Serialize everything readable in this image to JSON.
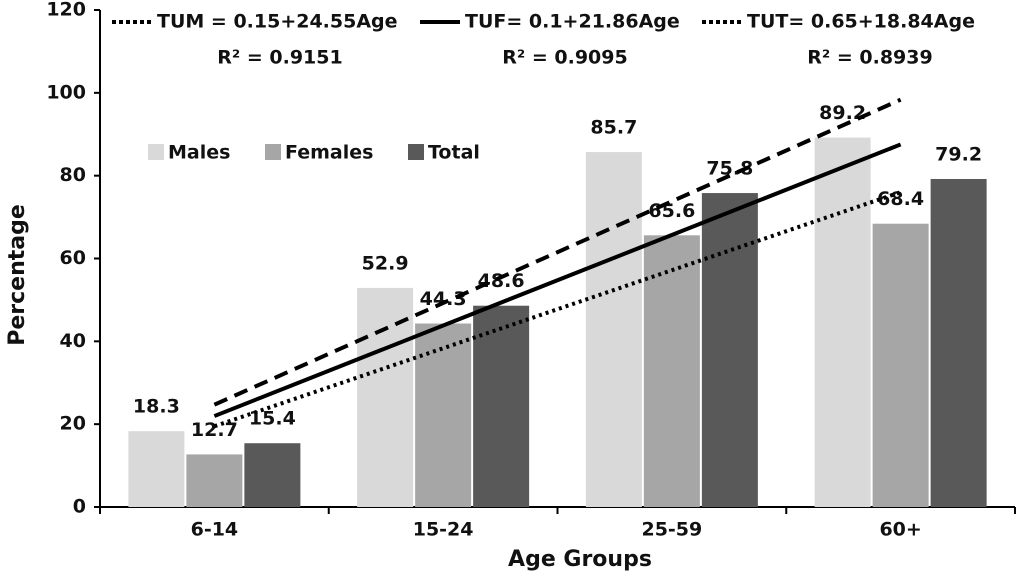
{
  "chart_data": {
    "type": "bar",
    "categories": [
      "6-14",
      "15-24",
      "25-59",
      "60+"
    ],
    "series": [
      {
        "name": "Males",
        "color": "#d9d9d9",
        "values": [
          18.3,
          52.9,
          85.7,
          89.2
        ]
      },
      {
        "name": "Females",
        "color": "#a6a6a6",
        "values": [
          12.7,
          44.3,
          65.6,
          68.4
        ]
      },
      {
        "name": "Total",
        "color": "#595959",
        "values": [
          15.4,
          48.6,
          75.8,
          79.2
        ]
      }
    ],
    "trendlines": [
      {
        "label": "TUM = 0.15+24.55Age",
        "r2": "R² = 0.9151",
        "intercept": 0.15,
        "slope": 24.55,
        "dash": "14,8"
      },
      {
        "label": "TUF= 0.1+21.86Age",
        "r2": "R² = 0.9095",
        "intercept": 0.1,
        "slope": 21.86,
        "dash": "none"
      },
      {
        "label": "TUT= 0.65+18.84Age",
        "r2": "R² = 0.8939",
        "intercept": 0.65,
        "slope": 18.84,
        "dash": "3,4"
      }
    ],
    "trendline_color": "#000000",
    "x_label": "Age Groups",
    "y_label": "Percentage",
    "ylim": [
      0,
      120
    ],
    "yticks": [
      0,
      20,
      40,
      60,
      80,
      100,
      120
    ]
  }
}
